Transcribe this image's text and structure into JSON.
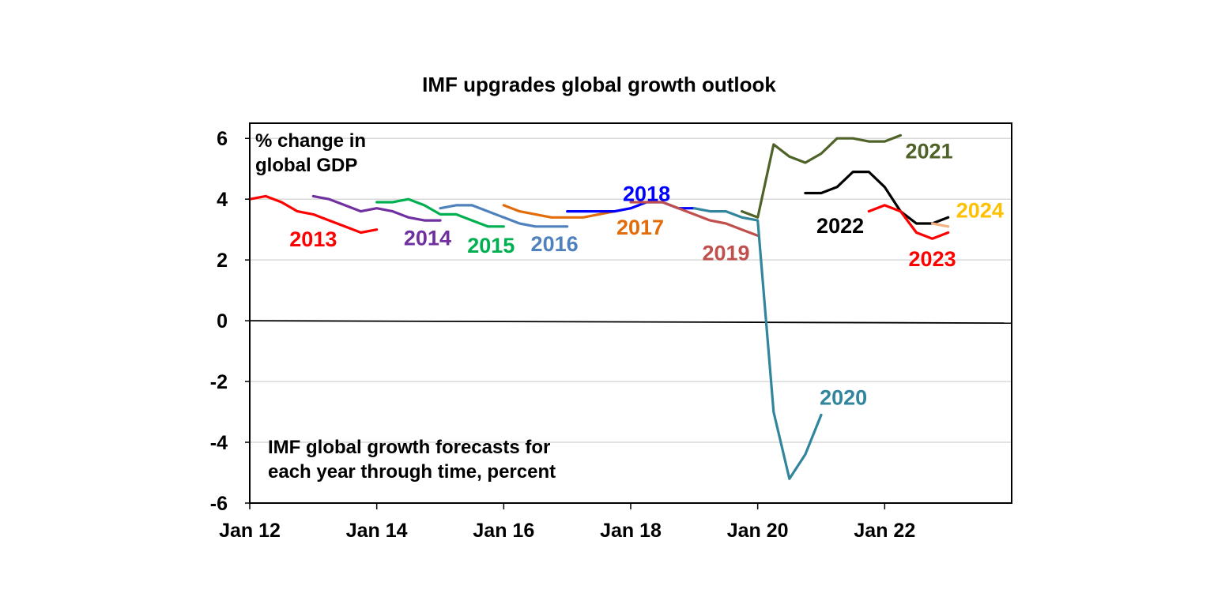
{
  "chart_data": {
    "type": "line",
    "title": "IMF upgrades global growth outlook",
    "ylabel_lines": [
      "% change in",
      "global GDP"
    ],
    "note_lines": [
      "IMF global growth forecasts for",
      "each year through time, percent"
    ],
    "ylim": [
      -6,
      6.5
    ],
    "yticks": [
      6,
      4,
      2,
      0,
      -2,
      -4,
      -6
    ],
    "ytick_labels": [
      "6",
      "4",
      "2",
      "0",
      "-2",
      "-4",
      "-6"
    ],
    "xlim": [
      2012.0,
      2024.0
    ],
    "xticks": [
      2012,
      2014,
      2016,
      2018,
      2020,
      2022
    ],
    "xtick_labels": [
      "Jan 12",
      "Jan 14",
      "Jan 16",
      "Jan 18",
      "Jan 20",
      "Jan 22"
    ],
    "grid": true,
    "series": [
      {
        "name": "2013",
        "color": "#ff0000",
        "x": [
          2012.0,
          2012.25,
          2012.5,
          2012.75,
          2013.0,
          2013.25,
          2013.5,
          2013.75,
          2014.0
        ],
        "y": [
          4.0,
          4.1,
          3.9,
          3.6,
          3.5,
          3.3,
          3.1,
          2.9,
          3.0
        ],
        "label_pos": [
          2013.0,
          2.7
        ]
      },
      {
        "name": "2014",
        "color": "#7030a0",
        "x": [
          2013.0,
          2013.25,
          2013.5,
          2013.75,
          2014.0,
          2014.25,
          2014.5,
          2014.75,
          2015.0
        ],
        "y": [
          4.1,
          4.0,
          3.8,
          3.6,
          3.7,
          3.6,
          3.4,
          3.3,
          3.3
        ],
        "label_pos": [
          2014.8,
          2.75
        ]
      },
      {
        "name": "2015",
        "color": "#00b050",
        "x": [
          2014.0,
          2014.25,
          2014.5,
          2014.75,
          2015.0,
          2015.25,
          2015.5,
          2015.75,
          2016.0
        ],
        "y": [
          3.9,
          3.9,
          4.0,
          3.8,
          3.5,
          3.5,
          3.3,
          3.1,
          3.1
        ],
        "label_pos": [
          2015.8,
          2.5
        ]
      },
      {
        "name": "2016",
        "color": "#4f81bd",
        "x": [
          2015.0,
          2015.25,
          2015.5,
          2015.75,
          2016.0,
          2016.25,
          2016.5,
          2016.75,
          2017.0
        ],
        "y": [
          3.7,
          3.8,
          3.8,
          3.6,
          3.4,
          3.2,
          3.1,
          3.1,
          3.1
        ],
        "label_pos": [
          2016.8,
          2.55
        ]
      },
      {
        "name": "2017",
        "color": "#e36c0a",
        "x": [
          2016.0,
          2016.25,
          2016.5,
          2016.75,
          2017.0,
          2017.25,
          2017.5,
          2017.75,
          2018.0
        ],
        "y": [
          3.8,
          3.6,
          3.5,
          3.4,
          3.4,
          3.4,
          3.5,
          3.6,
          3.7
        ],
        "label_pos": [
          2018.15,
          3.1
        ]
      },
      {
        "name": "2018",
        "color": "#0000ff",
        "x": [
          2017.0,
          2017.25,
          2017.5,
          2017.75,
          2018.0,
          2018.25,
          2018.5,
          2018.75,
          2019.0
        ],
        "y": [
          3.6,
          3.6,
          3.6,
          3.6,
          3.7,
          3.9,
          3.9,
          3.7,
          3.7
        ],
        "label_pos": [
          2018.25,
          4.2
        ]
      },
      {
        "name": "2019",
        "color": "#c0504d",
        "x": [
          2018.0,
          2018.25,
          2018.5,
          2018.75,
          2019.0,
          2019.25,
          2019.5,
          2019.75,
          2020.0
        ],
        "y": [
          3.9,
          3.9,
          3.9,
          3.7,
          3.5,
          3.3,
          3.2,
          3.0,
          2.8
        ],
        "label_pos": [
          2019.5,
          2.25
        ]
      },
      {
        "name": "2020",
        "color": "#31859c",
        "x": [
          2019.0,
          2019.25,
          2019.5,
          2019.75,
          2020.0,
          2020.25,
          2020.5,
          2020.75,
          2021.0
        ],
        "y": [
          3.7,
          3.6,
          3.6,
          3.4,
          3.3,
          -3.0,
          -5.2,
          -4.4,
          -3.1
        ],
        "label_pos": [
          2021.35,
          -2.5
        ]
      },
      {
        "name": "2021",
        "color": "#4f6228",
        "x": [
          2019.75,
          2020.0,
          2020.25,
          2020.5,
          2020.75,
          2021.0,
          2021.25,
          2021.5,
          2021.75,
          2022.0,
          2022.25
        ],
        "y": [
          3.6,
          3.4,
          5.8,
          5.4,
          5.2,
          5.5,
          6.0,
          6.0,
          5.9,
          5.9,
          6.1
        ],
        "label_pos": [
          2022.7,
          5.6
        ]
      },
      {
        "name": "2022",
        "color": "#000000",
        "x": [
          2020.75,
          2021.0,
          2021.25,
          2021.5,
          2021.75,
          2022.0,
          2022.25,
          2022.5,
          2022.75,
          2023.0
        ],
        "y": [
          4.2,
          4.2,
          4.4,
          4.9,
          4.9,
          4.4,
          3.6,
          3.2,
          3.2,
          3.4
        ],
        "label_pos": [
          2021.3,
          3.15
        ]
      },
      {
        "name": "2023",
        "color": "#ff0000",
        "x": [
          2021.75,
          2022.0,
          2022.25,
          2022.5,
          2022.75,
          2023.0
        ],
        "y": [
          3.6,
          3.8,
          3.6,
          2.9,
          2.7,
          2.9
        ],
        "label_pos": [
          2022.75,
          2.05
        ]
      },
      {
        "name": "2024",
        "color": "#ffc000",
        "x": [
          2022.75,
          2023.0
        ],
        "y": [
          3.2,
          3.1
        ],
        "label_pos": [
          2023.5,
          3.65
        ],
        "line_color": "#f4b183"
      }
    ]
  }
}
